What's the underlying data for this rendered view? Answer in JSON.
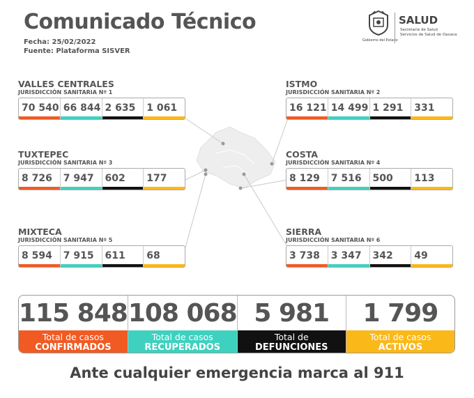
{
  "header": {
    "title": "Comunicado Técnico",
    "fecha": "Fecha: 25/02/2022",
    "fuente": "Fuente: Plataforma SISVER"
  },
  "logo": {
    "salud": "SALUD",
    "sub1": "Secretaría de Salud",
    "sub2": "Servicios de Salud de Oaxaca",
    "caption": "Gobierno del Estado"
  },
  "regions": [
    {
      "name": "VALLES CENTRALES",
      "jurisdiccion": "JURISDICCIÓN SANITARIA Nº 1",
      "values": [
        "70 540",
        "66 844",
        "2 635",
        "1 061"
      ]
    },
    {
      "name": "ISTMO",
      "jurisdiccion": "JURISDICCIÓN SANITARIA Nº 2",
      "values": [
        "16 121",
        "14 499",
        "1 291",
        "331"
      ]
    },
    {
      "name": "TUXTEPEC",
      "jurisdiccion": "JURISDICCIÓN SANITARIA Nº 3",
      "values": [
        "8 726",
        "7 947",
        "602",
        "177"
      ]
    },
    {
      "name": "COSTA",
      "jurisdiccion": "JURISDICCIÓN SANITARIA Nº 4",
      "values": [
        "8 129",
        "7 516",
        "500",
        "113"
      ]
    },
    {
      "name": "MIXTECA",
      "jurisdiccion": "JURISDICCIÓN SANITARIA Nº 5",
      "values": [
        "8 594",
        "7 915",
        "611",
        "68"
      ]
    },
    {
      "name": "SIERRA",
      "jurisdiccion": "JURISDICCIÓN SANITARIA Nº 6",
      "values": [
        "3 738",
        "3 347",
        "342",
        "49"
      ]
    }
  ],
  "totals": [
    {
      "value": "115 848",
      "line1": "Total de casos",
      "line2": "CONFIRMADOS",
      "color": "#f15a22"
    },
    {
      "value": "108 068",
      "line1": "Total de casos",
      "line2": "RECUPERADOS",
      "color": "#3ed1bf"
    },
    {
      "value": "5 981",
      "line1": "Total de",
      "line2": "DEFUNCIONES",
      "color": "#111111"
    },
    {
      "value": "1 799",
      "line1": "Total de casos",
      "line2": "ACTIVOS",
      "color": "#fbb819"
    }
  ],
  "footer": "Ante cualquier emergencia marca al 911"
}
